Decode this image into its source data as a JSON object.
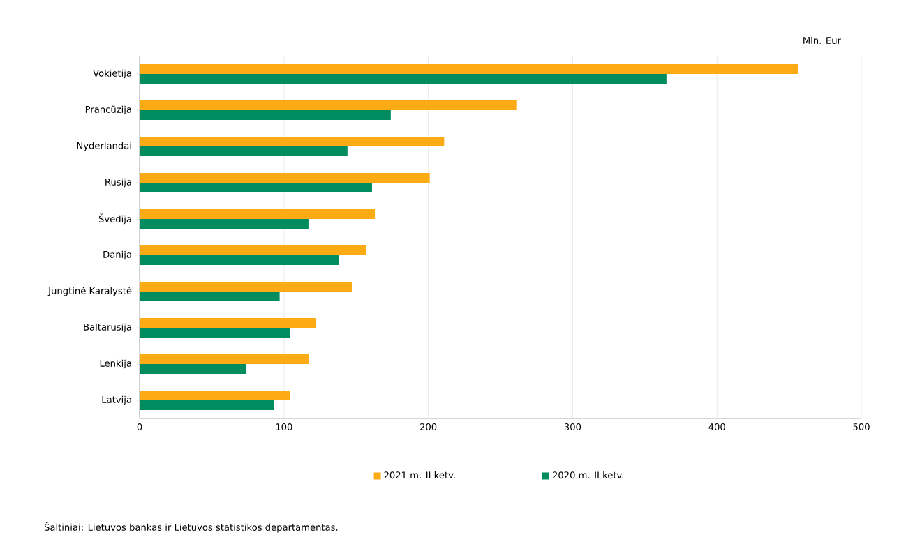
{
  "chart_data": {
    "type": "bar",
    "orientation": "horizontal",
    "xlabel": "Mln. Eur",
    "categories": [
      "Vokietija",
      "Prancūzija",
      "Nyderlandai",
      "Rusija",
      "Švedija",
      "Danija",
      "Jungtinė Karalystė",
      "Baltarusija",
      "Lenkija",
      "Latvija"
    ],
    "series": [
      {
        "name": "2021 m.  II ketv.",
        "color": "#fcab14",
        "values": [
          456,
          261,
          211,
          201,
          163,
          157,
          147,
          122,
          117,
          104
        ]
      },
      {
        "name": "2020 m.  II ketv.",
        "color": "#008c5f",
        "values": [
          365,
          174,
          144,
          161,
          117,
          138,
          97,
          104,
          74,
          93
        ]
      }
    ],
    "xlim": [
      0,
      500
    ],
    "xticks": [
      0,
      100,
      200,
      300,
      400,
      500
    ],
    "grid": "x",
    "legend": "bottom",
    "annotations": [
      "Šaltiniai: Lietuvos bankas ir Lietuvos statistikos departamentas."
    ]
  }
}
